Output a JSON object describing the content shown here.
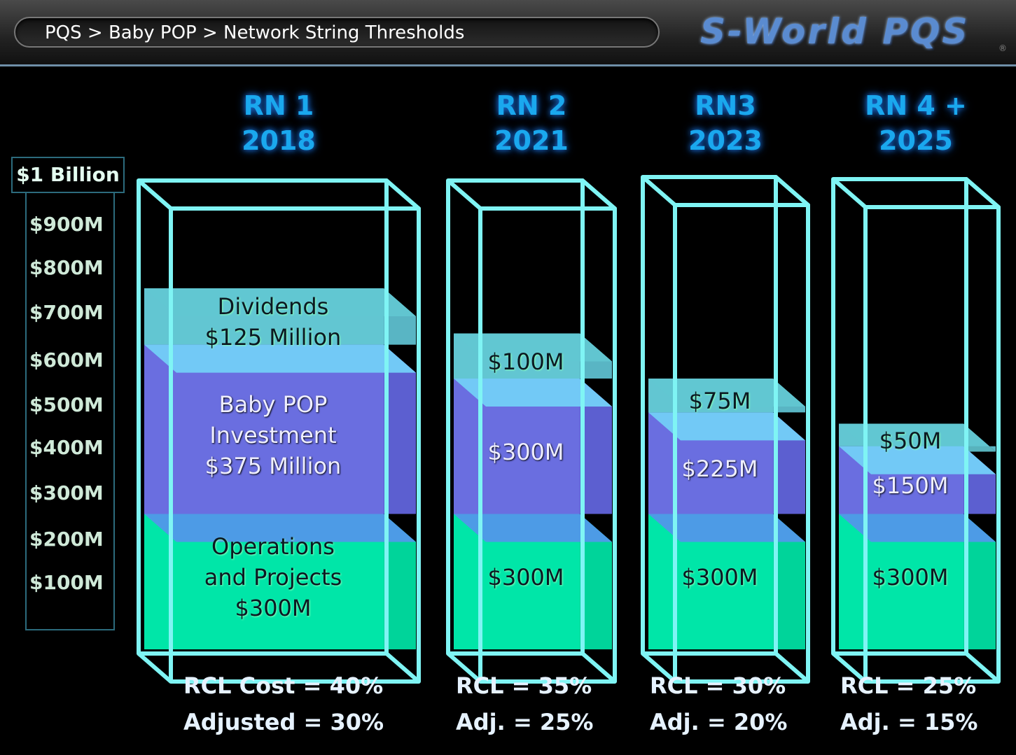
{
  "breadcrumb": "PQS > Baby POP > Network String Thresholds",
  "brand": "S-World PQS",
  "registered": "®",
  "chart_data": {
    "type": "bar",
    "stacked": true,
    "ylim": [
      0,
      1000
    ],
    "y_ticks": [
      "$1 Billion",
      "$900M",
      "$800M",
      "$700M",
      "$600M",
      "$500M",
      "$400M",
      "$300M",
      "$200M",
      "$100M"
    ],
    "columns": [
      {
        "title_line1": "RN 1",
        "title_line2": "2018",
        "segments": [
          {
            "key": "ops",
            "value": 300,
            "label": [
              "Operations",
              "and Projects",
              "$300M"
            ]
          },
          {
            "key": "inv",
            "value": 375,
            "label": [
              "Baby POP",
              "Investment",
              "$375 Million"
            ]
          },
          {
            "key": "div",
            "value": 125,
            "label": [
              "Dividends",
              "$125 Million"
            ]
          }
        ],
        "footer_line1": "RCL Cost = 40%",
        "footer_line2": "Adjusted = 30%"
      },
      {
        "title_line1": "RN 2",
        "title_line2": "2021",
        "segments": [
          {
            "key": "ops",
            "value": 300,
            "label": [
              "$300M"
            ]
          },
          {
            "key": "inv",
            "value": 300,
            "label": [
              "$300M"
            ]
          },
          {
            "key": "div",
            "value": 100,
            "label": [
              "$100M"
            ]
          }
        ],
        "footer_line1": "RCL = 35%",
        "footer_line2": "Adj. = 25%"
      },
      {
        "title_line1": "RN3",
        "title_line2": "2023",
        "segments": [
          {
            "key": "ops",
            "value": 300,
            "label": [
              "$300M"
            ]
          },
          {
            "key": "inv",
            "value": 225,
            "label": [
              "$225M"
            ]
          },
          {
            "key": "div",
            "value": 75,
            "label": [
              "$75M"
            ]
          }
        ],
        "footer_line1": "RCL = 30%",
        "footer_line2": "Adj. = 20%"
      },
      {
        "title_line1": "RN 4 +",
        "title_line2": "2025",
        "segments": [
          {
            "key": "ops",
            "value": 300,
            "label": [
              "$300M"
            ]
          },
          {
            "key": "inv",
            "value": 150,
            "label": [
              "$150M"
            ]
          },
          {
            "key": "div",
            "value": 50,
            "label": [
              "$50M"
            ]
          }
        ],
        "footer_line1": "RCL = 25%",
        "footer_line2": "Adj. = 15%"
      }
    ]
  },
  "colors": {
    "ops": "#00e6a8",
    "ops_side": "#00d49a",
    "inv": "#6a6ee0",
    "inv_side": "#5c5fd0",
    "div": "#62c6d2",
    "div_side": "#59b5c4",
    "band_ops_inv": "#4d9be6",
    "band_inv_div": "#72c9f6",
    "glass": "#7ff4f4"
  }
}
